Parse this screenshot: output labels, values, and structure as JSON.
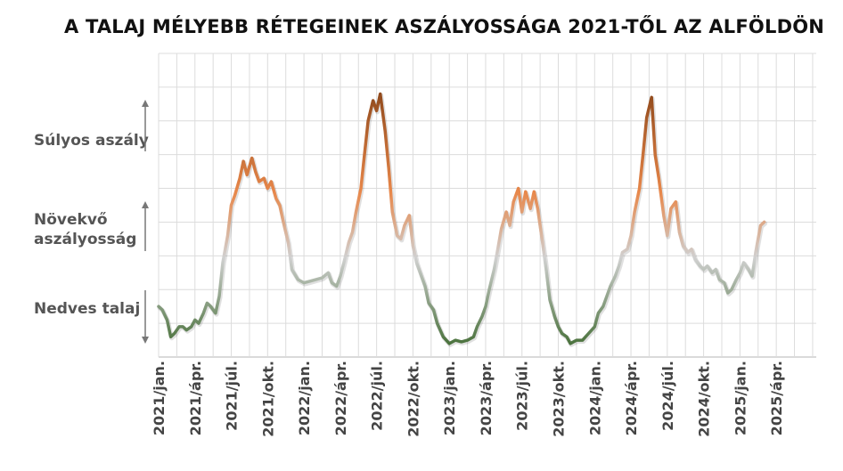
{
  "chart_data": {
    "type": "line",
    "title": "A TALAJ MÉLYEBB RÉTEGEINEK ASZÁLYOSSÁGA 2021-TŐL AZ ALFÖLDÖN",
    "xlabel": "",
    "ylabel": "",
    "y_zone_labels": [
      "Súlyos aszály",
      "Növekvő\naszályosság",
      "Nedves talaj"
    ],
    "x_tick_labels": [
      "2021/jan.",
      "2021/ápr.",
      "2021/júl.",
      "2021/okt.",
      "2022/jan.",
      "2022/ápr.",
      "2022/júl.",
      "2022/okt.",
      "2023/jan.",
      "2023/ápr.",
      "2023/júl.",
      "2023/okt.",
      "2024/jan.",
      "2024/ápr.",
      "2024/júl.",
      "2024/okt.",
      "2025/jan.",
      "2025/ápr."
    ],
    "x_unit": "months since 2021/jan.",
    "xlim": [
      0,
      54.3
    ],
    "ylim": [
      0,
      9
    ],
    "grid": true,
    "color_scale": [
      "#3f6a30",
      "#d0d0d0",
      "#e8874a",
      "#7a3a10"
    ],
    "series": [
      {
        "points": [
          [
            0.0,
            1.5
          ],
          [
            0.3,
            1.4
          ],
          [
            0.7,
            1.1
          ],
          [
            1.0,
            0.6
          ],
          [
            1.3,
            0.7
          ],
          [
            1.7,
            0.9
          ],
          [
            2.0,
            0.9
          ],
          [
            2.3,
            0.8
          ],
          [
            2.7,
            0.9
          ],
          [
            3.0,
            1.1
          ],
          [
            3.3,
            1.0
          ],
          [
            3.7,
            1.3
          ],
          [
            4.0,
            1.6
          ],
          [
            4.3,
            1.5
          ],
          [
            4.7,
            1.3
          ],
          [
            5.0,
            1.8
          ],
          [
            5.3,
            2.8
          ],
          [
            5.7,
            3.6
          ],
          [
            6.0,
            4.5
          ],
          [
            6.3,
            4.8
          ],
          [
            6.7,
            5.3
          ],
          [
            7.0,
            5.8
          ],
          [
            7.3,
            5.4
          ],
          [
            7.7,
            5.9
          ],
          [
            8.0,
            5.5
          ],
          [
            8.3,
            5.2
          ],
          [
            8.7,
            5.3
          ],
          [
            9.0,
            5.0
          ],
          [
            9.3,
            5.2
          ],
          [
            9.7,
            4.7
          ],
          [
            10.0,
            4.5
          ],
          [
            10.3,
            4.0
          ],
          [
            10.7,
            3.4
          ],
          [
            11.0,
            2.6
          ],
          [
            11.5,
            2.3
          ],
          [
            12.0,
            2.2
          ],
          [
            12.5,
            2.25
          ],
          [
            13.0,
            2.3
          ],
          [
            13.5,
            2.35
          ],
          [
            14.0,
            2.5
          ],
          [
            14.3,
            2.2
          ],
          [
            14.7,
            2.1
          ],
          [
            15.0,
            2.4
          ],
          [
            15.3,
            2.8
          ],
          [
            15.7,
            3.4
          ],
          [
            16.0,
            3.7
          ],
          [
            16.3,
            4.3
          ],
          [
            16.7,
            5.0
          ],
          [
            17.0,
            6.0
          ],
          [
            17.3,
            7.0
          ],
          [
            17.7,
            7.6
          ],
          [
            18.0,
            7.3
          ],
          [
            18.3,
            7.8
          ],
          [
            18.7,
            6.7
          ],
          [
            19.0,
            5.6
          ],
          [
            19.3,
            4.3
          ],
          [
            19.7,
            3.6
          ],
          [
            20.0,
            3.5
          ],
          [
            20.3,
            3.9
          ],
          [
            20.7,
            4.2
          ],
          [
            21.0,
            3.3
          ],
          [
            21.3,
            2.8
          ],
          [
            21.7,
            2.4
          ],
          [
            22.0,
            2.1
          ],
          [
            22.3,
            1.6
          ],
          [
            22.7,
            1.4
          ],
          [
            23.0,
            1.0
          ],
          [
            23.5,
            0.6
          ],
          [
            24.0,
            0.4
          ],
          [
            24.5,
            0.5
          ],
          [
            25.0,
            0.45
          ],
          [
            25.5,
            0.5
          ],
          [
            26.0,
            0.6
          ],
          [
            26.3,
            0.9
          ],
          [
            26.7,
            1.2
          ],
          [
            27.0,
            1.5
          ],
          [
            27.3,
            2.0
          ],
          [
            27.7,
            2.6
          ],
          [
            28.0,
            3.2
          ],
          [
            28.3,
            3.8
          ],
          [
            28.7,
            4.3
          ],
          [
            29.0,
            3.9
          ],
          [
            29.3,
            4.6
          ],
          [
            29.7,
            5.0
          ],
          [
            30.0,
            4.3
          ],
          [
            30.3,
            4.9
          ],
          [
            30.7,
            4.4
          ],
          [
            31.0,
            4.9
          ],
          [
            31.3,
            4.4
          ],
          [
            31.7,
            3.4
          ],
          [
            32.0,
            2.6
          ],
          [
            32.3,
            1.7
          ],
          [
            32.7,
            1.2
          ],
          [
            33.0,
            0.9
          ],
          [
            33.3,
            0.7
          ],
          [
            33.7,
            0.6
          ],
          [
            34.0,
            0.4
          ],
          [
            34.5,
            0.5
          ],
          [
            35.0,
            0.5
          ],
          [
            35.5,
            0.7
          ],
          [
            36.0,
            0.9
          ],
          [
            36.3,
            1.3
          ],
          [
            36.7,
            1.5
          ],
          [
            37.0,
            1.8
          ],
          [
            37.3,
            2.1
          ],
          [
            37.7,
            2.4
          ],
          [
            38.0,
            2.7
          ],
          [
            38.3,
            3.1
          ],
          [
            38.7,
            3.2
          ],
          [
            39.0,
            3.6
          ],
          [
            39.3,
            4.3
          ],
          [
            39.7,
            5.0
          ],
          [
            40.0,
            6.0
          ],
          [
            40.3,
            7.1
          ],
          [
            40.7,
            7.7
          ],
          [
            41.0,
            6.0
          ],
          [
            41.3,
            5.3
          ],
          [
            41.7,
            4.2
          ],
          [
            42.0,
            3.6
          ],
          [
            42.3,
            4.4
          ],
          [
            42.7,
            4.6
          ],
          [
            43.0,
            3.7
          ],
          [
            43.3,
            3.3
          ],
          [
            43.7,
            3.1
          ],
          [
            44.0,
            3.2
          ],
          [
            44.3,
            2.9
          ],
          [
            44.7,
            2.7
          ],
          [
            45.0,
            2.6
          ],
          [
            45.3,
            2.7
          ],
          [
            45.7,
            2.5
          ],
          [
            46.0,
            2.6
          ],
          [
            46.3,
            2.3
          ],
          [
            46.7,
            2.2
          ],
          [
            47.0,
            1.9
          ],
          [
            47.3,
            2.0
          ],
          [
            47.7,
            2.3
          ],
          [
            48.0,
            2.5
          ],
          [
            48.3,
            2.8
          ],
          [
            48.7,
            2.6
          ],
          [
            49.0,
            2.4
          ],
          [
            49.3,
            3.1
          ],
          [
            49.7,
            3.9
          ],
          [
            50.0,
            4.0
          ]
        ]
      }
    ]
  }
}
